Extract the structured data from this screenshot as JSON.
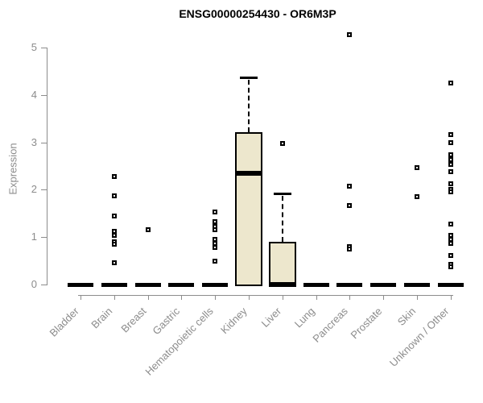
{
  "chart_data": {
    "type": "boxplot",
    "title": "ENSG00000254430 - OR6M3P",
    "ylabel": "Expression",
    "xlabel": "",
    "ylim": [
      0,
      5.4
    ],
    "yticks": [
      0,
      1,
      2,
      3,
      4,
      5
    ],
    "grid": false,
    "legend": "none",
    "colors": {
      "box_fill": "#EDE7CD",
      "box_border": "#000000",
      "axis": "#8C8C8C",
      "title_text": "#000000",
      "point": "#000000"
    },
    "categories": [
      "Bladder",
      "Brain",
      "Breast",
      "Gastric",
      "Hematopoietic cells",
      "Kidney",
      "Liver",
      "Lung",
      "Pancreas",
      "Prostate",
      "Skin",
      "Unknown / Other"
    ],
    "boxes": [
      {
        "category": "Bladder",
        "q1": 0,
        "median": 0,
        "q3": 0,
        "whisker_low": 0,
        "whisker_high": 0,
        "outliers": []
      },
      {
        "category": "Brain",
        "q1": 0,
        "median": 0,
        "q3": 0,
        "whisker_low": 0,
        "whisker_high": 0,
        "outliers": [
          2.28,
          1.87,
          1.45,
          1.12,
          1.04,
          0.9,
          0.85,
          0.46
        ]
      },
      {
        "category": "Breast",
        "q1": 0,
        "median": 0,
        "q3": 0,
        "whisker_low": 0,
        "whisker_high": 0,
        "outliers": [
          1.15
        ]
      },
      {
        "category": "Gastric",
        "q1": 0,
        "median": 0,
        "q3": 0,
        "whisker_low": 0,
        "whisker_high": 0,
        "outliers": []
      },
      {
        "category": "Hematopoietic cells",
        "q1": 0,
        "median": 0,
        "q3": 0,
        "whisker_low": 0,
        "whisker_high": 0,
        "outliers": [
          1.53,
          1.33,
          1.22,
          1.15,
          0.95,
          0.87,
          0.78,
          0.49
        ]
      },
      {
        "category": "Kidney",
        "q1": 0,
        "median": 2.35,
        "q3": 3.21,
        "whisker_low": 0,
        "whisker_high": 4.37,
        "outliers": []
      },
      {
        "category": "Liver",
        "q1": 0,
        "median": 0,
        "q3": 0.9,
        "whisker_low": 0,
        "whisker_high": 1.93,
        "outliers": [
          2.98
        ]
      },
      {
        "category": "Lung",
        "q1": 0,
        "median": 0,
        "q3": 0,
        "whisker_low": 0,
        "whisker_high": 0,
        "outliers": []
      },
      {
        "category": "Pancreas",
        "q1": 0,
        "median": 0,
        "q3": 0,
        "whisker_low": 0,
        "whisker_high": 0,
        "outliers": [
          5.27,
          2.07,
          1.66,
          0.8,
          0.74
        ]
      },
      {
        "category": "Prostate",
        "q1": 0,
        "median": 0,
        "q3": 0,
        "whisker_low": 0,
        "whisker_high": 0,
        "outliers": []
      },
      {
        "category": "Skin",
        "q1": 0,
        "median": 0,
        "q3": 0,
        "whisker_low": 0,
        "whisker_high": 0,
        "outliers": [
          2.47,
          1.85
        ]
      },
      {
        "category": "Unknown / Other",
        "q1": 0,
        "median": 0,
        "q3": 0,
        "whisker_low": 0,
        "whisker_high": 0,
        "outliers": [
          4.25,
          3.16,
          2.99,
          2.74,
          2.64,
          2.53,
          2.38,
          2.13,
          2.0,
          1.95,
          1.27,
          1.04,
          0.95,
          0.87,
          0.61,
          0.42,
          0.37
        ]
      }
    ]
  }
}
